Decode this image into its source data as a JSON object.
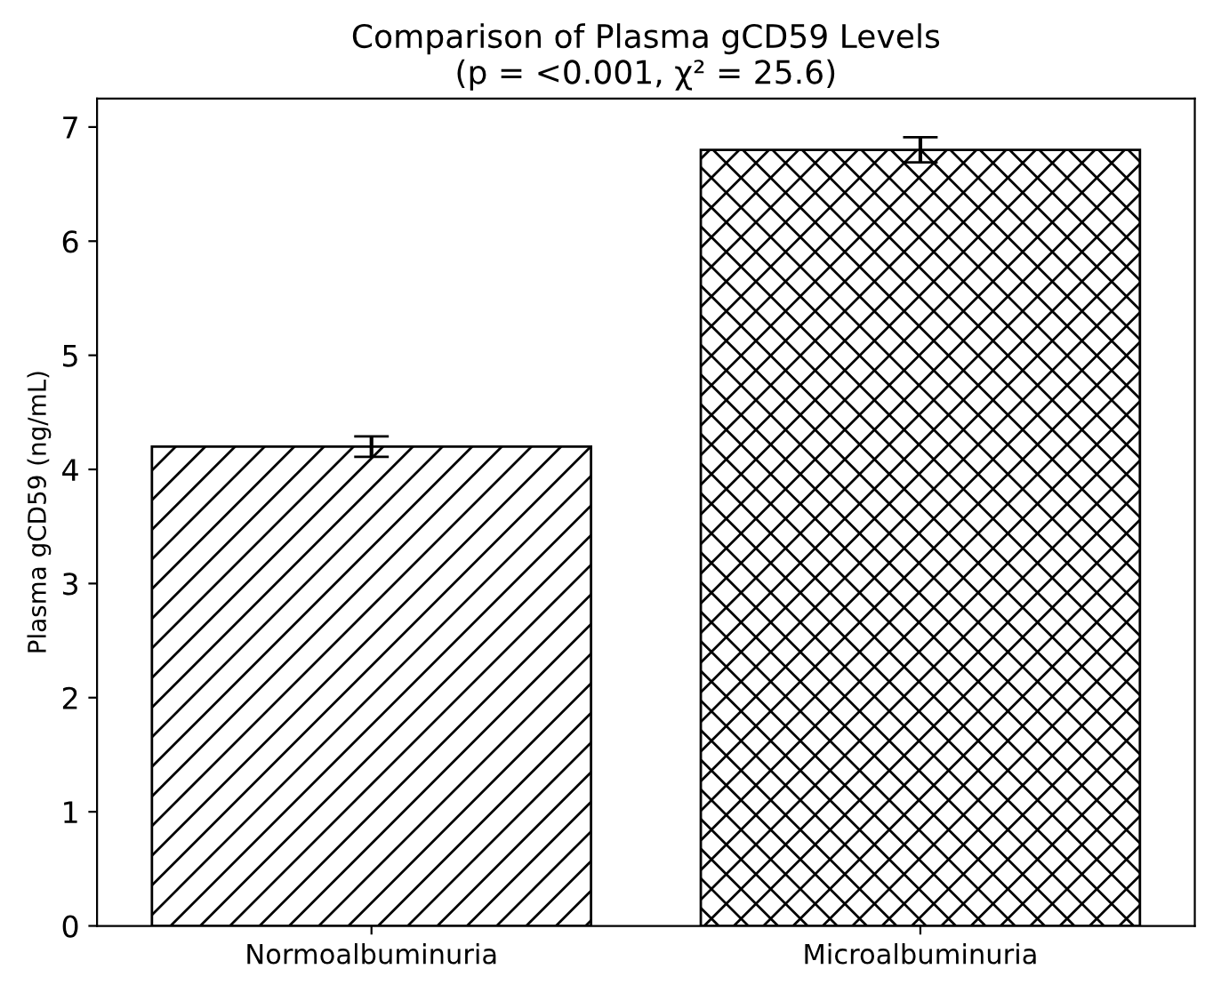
{
  "chart_data": {
    "type": "bar",
    "title": "Comparison of Plasma gCD59 Levels\n(p = <0.001, χ² = 25.6)",
    "ylabel": "Plasma gCD59 (ng/mL)",
    "categories": [
      "Normoalbuminuria",
      "Microalbuminuria"
    ],
    "values": [
      4.2,
      6.8
    ],
    "errors": [
      0.09,
      0.11
    ],
    "ylim": [
      0,
      7.25
    ],
    "yticks": [
      0,
      1,
      2,
      3,
      4,
      5,
      6,
      7
    ],
    "grid": false,
    "legend": false
  }
}
